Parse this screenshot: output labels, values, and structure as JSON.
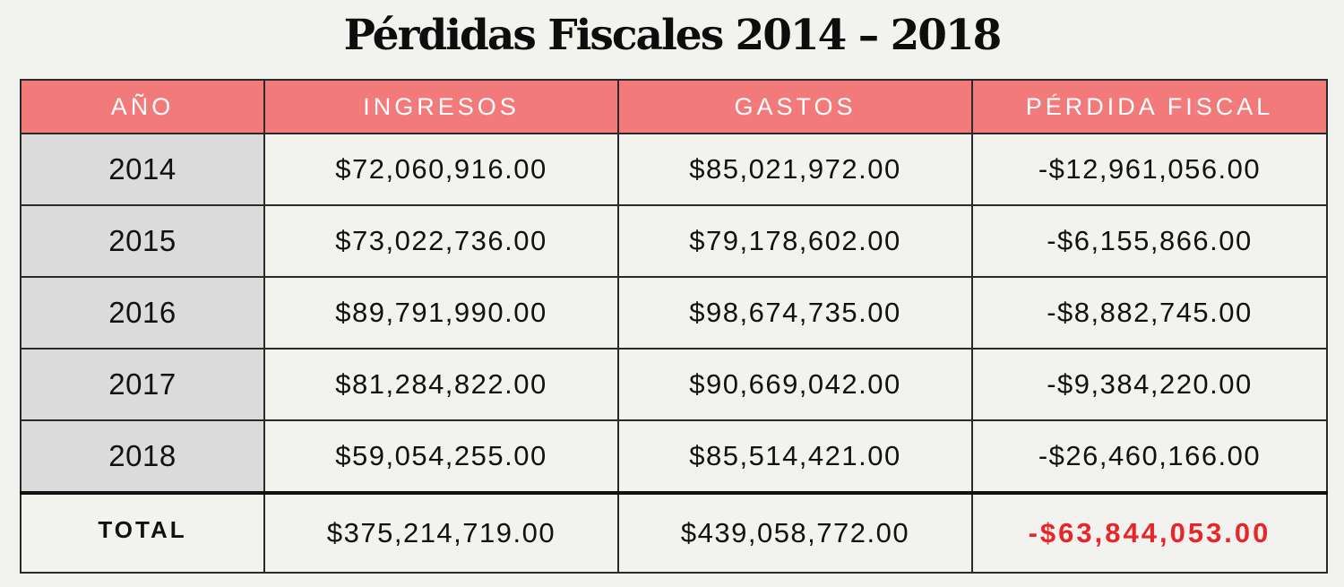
{
  "chart_data": {
    "type": "table",
    "title": "Pérdidas Fiscales 2014 – 2018",
    "columns": [
      "AÑO",
      "INGRESOS",
      "GASTOS",
      "PÉRDIDA FISCAL"
    ],
    "rows": [
      {
        "year": "2014",
        "ingresos": "$72,060,916.00",
        "gastos": "$85,021,972.00",
        "perdida": "-$12,961,056.00"
      },
      {
        "year": "2015",
        "ingresos": "$73,022,736.00",
        "gastos": "$79,178,602.00",
        "perdida": "-$6,155,866.00"
      },
      {
        "year": "2016",
        "ingresos": "$89,791,990.00",
        "gastos": "$98,674,735.00",
        "perdida": "-$8,882,745.00"
      },
      {
        "year": "2017",
        "ingresos": "$81,284,822.00",
        "gastos": "$90,669,042.00",
        "perdida": "-$9,384,220.00"
      },
      {
        "year": "2018",
        "ingresos": "$59,054,255.00",
        "gastos": "$85,514,421.00",
        "perdida": "-$26,460,166.00"
      }
    ],
    "total": {
      "label": "TOTAL",
      "ingresos": "$375,214,719.00",
      "gastos": "$439,058,772.00",
      "perdida": "-$63,844,053.00"
    }
  },
  "colors": {
    "background": "#f2f2ee",
    "header_fill": "#f37a7a",
    "header_text": "#ffffff",
    "year_cell_fill": "#dbdbdb",
    "border": "#2a2a2a",
    "total_loss_text": "#e8262a"
  }
}
